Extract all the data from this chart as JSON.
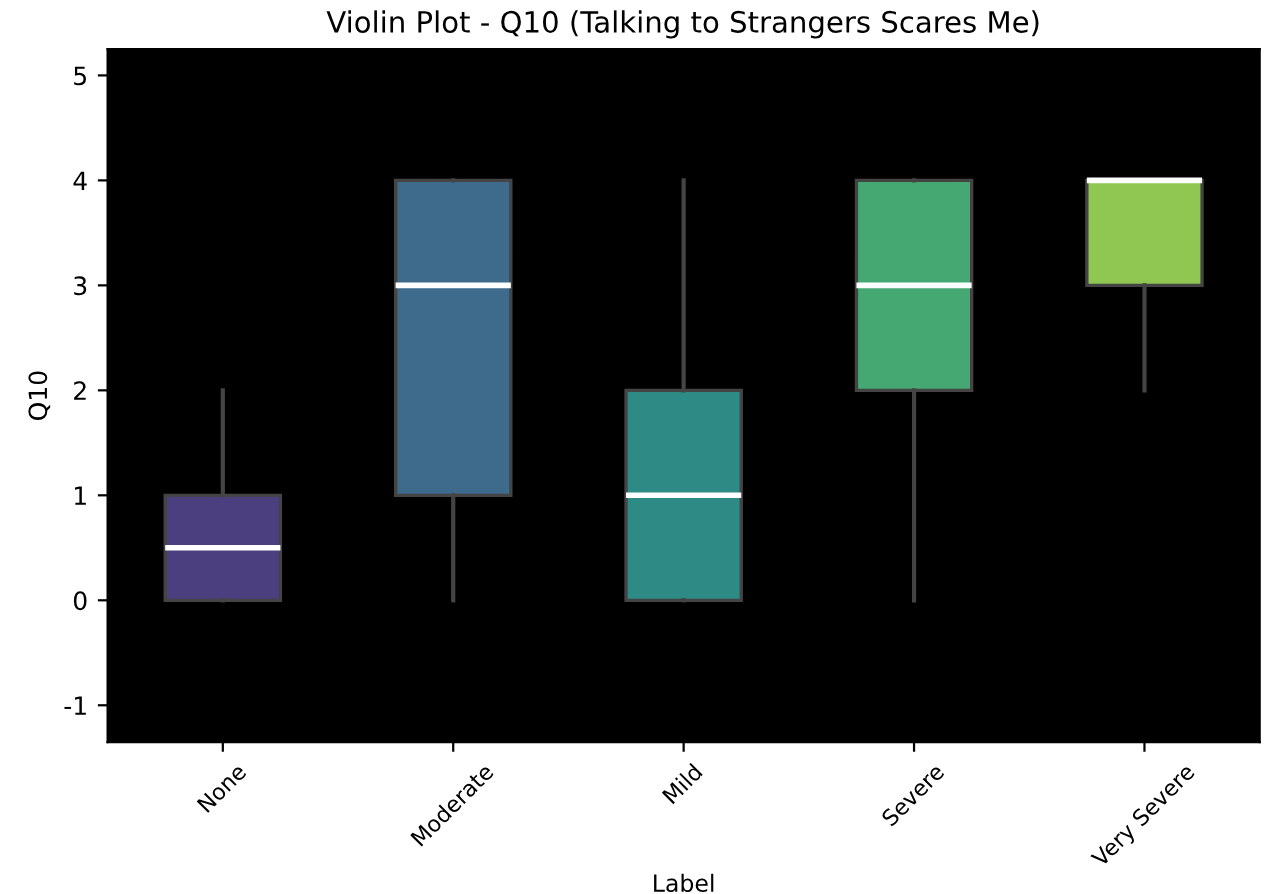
{
  "chart_data": {
    "type": "box",
    "title": "Violin Plot - Q10 (Talking to Strangers Scares Me)",
    "xlabel": "Label",
    "ylabel": "Q10",
    "categories": [
      "None",
      "Moderate",
      "Mild",
      "Severe",
      "Very Severe"
    ],
    "colors": [
      "#4b3f80",
      "#3e6a8c",
      "#2e8a85",
      "#45a872",
      "#8fc752"
    ],
    "boxes": [
      {
        "low": 0,
        "q1": 0,
        "median": 0.5,
        "q3": 1,
        "high": 2
      },
      {
        "low": 0,
        "q1": 1,
        "median": 3,
        "q3": 4,
        "high": 4
      },
      {
        "low": 0,
        "q1": 0,
        "median": 1,
        "q3": 2,
        "high": 4
      },
      {
        "low": 0,
        "q1": 2,
        "median": 3,
        "q3": 4,
        "high": 4
      },
      {
        "low": 2,
        "q1": 3,
        "median": 4,
        "q3": 4,
        "high": 4
      }
    ],
    "ylim": [
      -1.35,
      5.25
    ],
    "yticks": [
      -1,
      0,
      1,
      2,
      3,
      4,
      5
    ],
    "grid": false
  }
}
